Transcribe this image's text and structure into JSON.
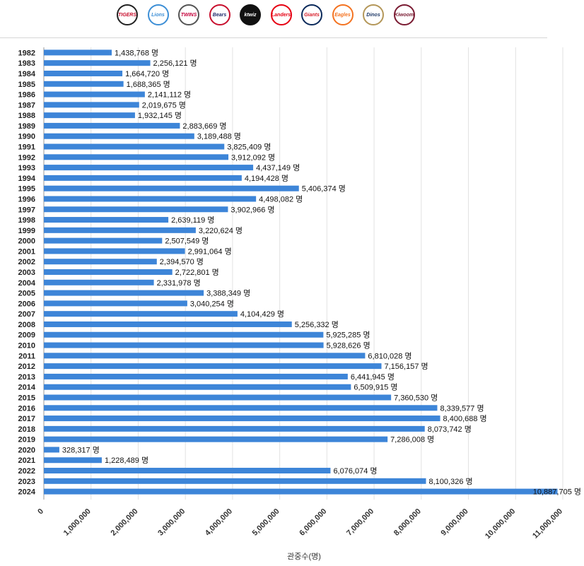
{
  "team_logos": [
    {
      "name": "kia-tigers",
      "text": "TIGERS",
      "bg": "#ffffff",
      "fg": "#c8102e",
      "border": "#222222"
    },
    {
      "name": "samsung-lions",
      "text": "Lions",
      "bg": "#ffffff",
      "fg": "#3d8fd6",
      "border": "#3d8fd6"
    },
    {
      "name": "lg-twins",
      "text": "TWINS",
      "bg": "#ffffff",
      "fg": "#c4003a",
      "border": "#555555"
    },
    {
      "name": "doosan-bears",
      "text": "Bears",
      "bg": "#ffffff",
      "fg": "#1f2a6b",
      "border": "#c8102e"
    },
    {
      "name": "kt-wiz",
      "text": "ktwiz",
      "bg": "#111111",
      "fg": "#ffffff",
      "border": "#111111"
    },
    {
      "name": "ssg-landers",
      "text": "Landers",
      "bg": "#ffffff",
      "fg": "#e60012",
      "border": "#e60012"
    },
    {
      "name": "lotte-giants",
      "text": "Giants",
      "bg": "#ffffff",
      "fg": "#d71f2a",
      "border": "#0b2a5b"
    },
    {
      "name": "hanwha-eagles",
      "text": "Eagles",
      "bg": "#ffffff",
      "fg": "#f47321",
      "border": "#f47321"
    },
    {
      "name": "nc-dinos",
      "text": "Dinos",
      "bg": "#ffffff",
      "fg": "#1f3a68",
      "border": "#b49759"
    },
    {
      "name": "kiwoom-heroes",
      "text": "Kiwoom",
      "bg": "#ffffff",
      "fg": "#7a1b32",
      "border": "#7a1b32"
    }
  ],
  "colors": {
    "bar": "#3d85d8",
    "grid": "#e2e2e2",
    "axis": "#9a9a9a"
  },
  "chart_data": {
    "type": "bar",
    "orientation": "horizontal",
    "categories": [
      "1982",
      "1983",
      "1984",
      "1985",
      "1986",
      "1987",
      "1988",
      "1989",
      "1990",
      "1991",
      "1992",
      "1993",
      "1994",
      "1995",
      "1996",
      "1997",
      "1998",
      "1999",
      "2000",
      "2001",
      "2002",
      "2003",
      "2004",
      "2005",
      "2006",
      "2007",
      "2008",
      "2009",
      "2010",
      "2011",
      "2012",
      "2013",
      "2014",
      "2015",
      "2016",
      "2017",
      "2018",
      "2019",
      "2020",
      "2021",
      "2022",
      "2023",
      "2024"
    ],
    "values": [
      1438768,
      2256121,
      1664720,
      1688365,
      2141112,
      2019675,
      1932145,
      2883669,
      3189488,
      3825409,
      3912092,
      4437149,
      4194428,
      5406374,
      4498082,
      3902966,
      2639119,
      3220624,
      2507549,
      2991064,
      2394570,
      2722801,
      2331978,
      3388349,
      3040254,
      4104429,
      5256332,
      5925285,
      5928626,
      6810028,
      7156157,
      6441945,
      6509915,
      7360530,
      8339577,
      8400688,
      8073742,
      7286008,
      328317,
      1228489,
      6076074,
      8100326,
      10887705
    ],
    "value_labels": [
      "1,438,768 명",
      "2,256,121 명",
      "1,664,720 명",
      "1,688,365 명",
      "2,141,112 명",
      "2,019,675 명",
      "1,932,145 명",
      "2,883,669 명",
      "3,189,488 명",
      "3,825,409 명",
      "3,912,092 명",
      "4,437,149 명",
      "4,194,428 명",
      "5,406,374 명",
      "4,498,082 명",
      "3,902,966 명",
      "2,639,119 명",
      "3,220,624 명",
      "2,507,549 명",
      "2,991,064 명",
      "2,394,570 명",
      "2,722,801 명",
      "2,331,978 명",
      "3,388,349 명",
      "3,040,254 명",
      "4,104,429 명",
      "5,256,332 명",
      "5,925,285 명",
      "5,928,626 명",
      "6,810,028 명",
      "7,156,157 명",
      "6,441,945 명",
      "6,509,915 명",
      "7,360,530 명",
      "8,339,577 명",
      "8,400,688 명",
      "8,073,742 명",
      "7,286,008 명",
      "328,317 명",
      "1,228,489 명",
      "6,076,074 명",
      "8,100,326 명",
      "10,887,705 명"
    ],
    "xlim": [
      0,
      11000000
    ],
    "xticks": [
      0,
      1000000,
      2000000,
      3000000,
      4000000,
      5000000,
      6000000,
      7000000,
      8000000,
      9000000,
      10000000,
      11000000
    ],
    "xtick_labels": [
      "0",
      "1,000,000",
      "2,000,000",
      "3,000,000",
      "4,000,000",
      "5,000,000",
      "6,000,000",
      "7,000,000",
      "8,000,000",
      "9,000,000",
      "10,000,000",
      "11,000,000"
    ],
    "xlabel": "관중수(명)",
    "ylabel": "",
    "grid": true
  }
}
